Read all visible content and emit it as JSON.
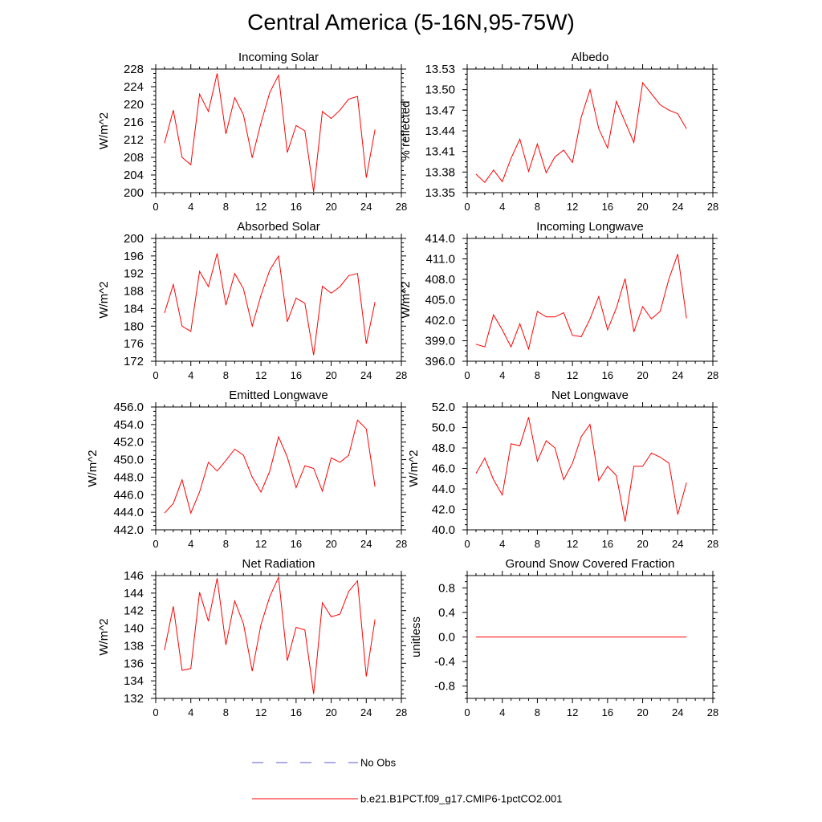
{
  "title": "Central America (5-16N,95-75W)",
  "colors": {
    "model": "#ff0000",
    "obs": "#5a5acd",
    "axis": "#000000"
  },
  "legend": {
    "obs_label": "No Obs",
    "model_label": "b.e21.B1PCT.f09_g17.CMIP6-1pctCO2.001"
  },
  "chart_data": [
    {
      "type": "line",
      "title": "Incoming Solar",
      "ylabel": "W/m^2",
      "xlim": [
        0,
        28
      ],
      "ylim": [
        200,
        228
      ],
      "xticks": [
        "0",
        "4",
        "8",
        "12",
        "16",
        "20",
        "24",
        "28"
      ],
      "yticks": [
        "200",
        "204",
        "208",
        "212",
        "216",
        "220",
        "224",
        "228"
      ],
      "series": [
        {
          "x": [
            1,
            2,
            3,
            4,
            5,
            6,
            7,
            8,
            9,
            10,
            11,
            12,
            13,
            14,
            15,
            16,
            17,
            18,
            19,
            20,
            21,
            22,
            23,
            24,
            25
          ],
          "values": [
            211.2,
            218.7,
            208.0,
            206.3,
            222.3,
            218.4,
            227.0,
            213.3,
            221.5,
            217.6,
            207.9,
            215.8,
            222.7,
            226.6,
            209.1,
            215.2,
            214.0,
            200.2,
            218.4,
            216.8,
            218.7,
            221.2,
            221.8,
            203.4,
            214.3
          ]
        }
      ]
    },
    {
      "type": "line",
      "title": "Albedo",
      "ylabel": "% reflected",
      "xlim": [
        0,
        28
      ],
      "ylim": [
        13.35,
        13.53
      ],
      "xticks": [
        "0",
        "4",
        "8",
        "12",
        "16",
        "20",
        "24",
        "28"
      ],
      "yticks": [
        "13.35",
        "13.38",
        "13.41",
        "13.44",
        "13.47",
        "13.50",
        "13.53"
      ],
      "series": [
        {
          "x": [
            1,
            2,
            3,
            4,
            5,
            6,
            7,
            8,
            9,
            10,
            11,
            12,
            13,
            14,
            15,
            16,
            17,
            18,
            19,
            20,
            21,
            22,
            23,
            24,
            25
          ],
          "values": [
            13.377,
            13.365,
            13.383,
            13.366,
            13.4,
            13.428,
            13.381,
            13.421,
            13.379,
            13.402,
            13.412,
            13.394,
            13.46,
            13.5,
            13.443,
            13.415,
            13.483,
            13.453,
            13.423,
            13.51,
            13.494,
            13.478,
            13.47,
            13.465,
            13.443
          ]
        }
      ]
    },
    {
      "type": "line",
      "title": "Absorbed Solar",
      "ylabel": "W/m^2",
      "xlim": [
        0,
        28
      ],
      "ylim": [
        172,
        200
      ],
      "xticks": [
        "0",
        "4",
        "8",
        "12",
        "16",
        "20",
        "24",
        "28"
      ],
      "yticks": [
        "172",
        "176",
        "180",
        "184",
        "188",
        "192",
        "196",
        "200"
      ],
      "series": [
        {
          "x": [
            1,
            2,
            3,
            4,
            5,
            6,
            7,
            8,
            9,
            10,
            11,
            12,
            13,
            14,
            15,
            16,
            17,
            18,
            19,
            20,
            21,
            22,
            23,
            24,
            25
          ],
          "values": [
            183.0,
            189.5,
            180.0,
            178.8,
            192.5,
            189.0,
            196.6,
            184.8,
            192.0,
            188.5,
            180.0,
            187.0,
            192.8,
            196.0,
            181.0,
            186.4,
            185.2,
            173.4,
            189.1,
            187.5,
            189.0,
            191.5,
            192.0,
            176.0,
            185.5
          ]
        }
      ]
    },
    {
      "type": "line",
      "title": "Incoming Longwave",
      "ylabel": "W/m^2",
      "xlim": [
        0,
        28
      ],
      "ylim": [
        396.0,
        414.0
      ],
      "xticks": [
        "0",
        "4",
        "8",
        "12",
        "16",
        "20",
        "24",
        "28"
      ],
      "yticks": [
        "396.0",
        "399.0",
        "402.0",
        "405.0",
        "408.0",
        "411.0",
        "414.0"
      ],
      "series": [
        {
          "x": [
            1,
            2,
            3,
            4,
            5,
            6,
            7,
            8,
            9,
            10,
            11,
            12,
            13,
            14,
            15,
            16,
            17,
            18,
            19,
            20,
            21,
            22,
            23,
            24,
            25
          ],
          "values": [
            398.5,
            398.1,
            402.8,
            400.6,
            398.1,
            401.5,
            397.8,
            403.3,
            402.5,
            402.5,
            403.1,
            399.8,
            399.6,
            402.2,
            405.5,
            400.6,
            403.8,
            408.1,
            400.3,
            404.0,
            402.2,
            403.3,
            408.1,
            411.7,
            402.3
          ]
        }
      ]
    },
    {
      "type": "line",
      "title": "Emitted Longwave",
      "ylabel": "W/m^2",
      "xlim": [
        0,
        28
      ],
      "ylim": [
        442.0,
        456.0
      ],
      "xticks": [
        "0",
        "4",
        "8",
        "12",
        "16",
        "20",
        "24",
        "28"
      ],
      "yticks": [
        "442.0",
        "444.0",
        "446.0",
        "448.0",
        "450.0",
        "452.0",
        "454.0",
        "456.0"
      ],
      "series": [
        {
          "x": [
            1,
            2,
            3,
            4,
            5,
            6,
            7,
            8,
            9,
            10,
            11,
            12,
            13,
            14,
            15,
            16,
            17,
            18,
            19,
            20,
            21,
            22,
            23,
            24,
            25
          ],
          "values": [
            443.9,
            445.0,
            447.7,
            443.9,
            446.3,
            449.7,
            448.7,
            449.9,
            451.2,
            450.5,
            448.0,
            446.3,
            448.7,
            452.6,
            450.3,
            446.8,
            449.3,
            449.0,
            446.4,
            450.2,
            449.7,
            450.5,
            454.5,
            453.5,
            446.9
          ]
        }
      ]
    },
    {
      "type": "line",
      "title": "Net Longwave",
      "ylabel": "W/m^2",
      "xlim": [
        0,
        28
      ],
      "ylim": [
        40.0,
        52.0
      ],
      "xticks": [
        "0",
        "4",
        "8",
        "12",
        "16",
        "20",
        "24",
        "28"
      ],
      "yticks": [
        "40.0",
        "42.0",
        "44.0",
        "46.0",
        "48.0",
        "50.0",
        "52.0"
      ],
      "series": [
        {
          "x": [
            1,
            2,
            3,
            4,
            5,
            6,
            7,
            8,
            9,
            10,
            11,
            12,
            13,
            14,
            15,
            16,
            17,
            18,
            19,
            20,
            21,
            22,
            23,
            24,
            25
          ],
          "values": [
            45.5,
            47.0,
            44.9,
            43.4,
            48.4,
            48.2,
            51.0,
            46.7,
            48.7,
            48.0,
            44.9,
            46.5,
            49.1,
            50.3,
            44.8,
            46.2,
            45.3,
            40.8,
            46.2,
            46.2,
            47.5,
            47.1,
            46.5,
            41.5,
            44.6
          ]
        }
      ]
    },
    {
      "type": "line",
      "title": "Net Radiation",
      "ylabel": "W/m^2",
      "xlim": [
        0,
        28
      ],
      "ylim": [
        132,
        146
      ],
      "xticks": [
        "0",
        "4",
        "8",
        "12",
        "16",
        "20",
        "24",
        "28"
      ],
      "yticks": [
        "132",
        "134",
        "136",
        "138",
        "140",
        "142",
        "144",
        "146"
      ],
      "series": [
        {
          "x": [
            1,
            2,
            3,
            4,
            5,
            6,
            7,
            8,
            9,
            10,
            11,
            12,
            13,
            14,
            15,
            16,
            17,
            18,
            19,
            20,
            21,
            22,
            23,
            24,
            25
          ],
          "values": [
            137.5,
            142.5,
            135.2,
            135.4,
            144.1,
            140.8,
            145.7,
            138.1,
            143.1,
            140.5,
            135.1,
            140.4,
            143.6,
            145.8,
            136.3,
            140.1,
            139.8,
            132.5,
            142.9,
            141.3,
            141.6,
            144.2,
            145.4,
            134.5,
            141.0
          ]
        }
      ]
    },
    {
      "type": "line",
      "title": "Ground Snow Covered Fraction",
      "ylabel": "unitless",
      "xlim": [
        0,
        28
      ],
      "ylim": [
        -1.0,
        1.0
      ],
      "xticks": [
        "0",
        "4",
        "8",
        "12",
        "16",
        "20",
        "24",
        "28"
      ],
      "yticks": [
        "-0.8",
        "-0.4",
        "0.0",
        "0.4",
        "0.8"
      ],
      "ytick_values": [
        -0.8,
        -0.4,
        0.0,
        0.4,
        0.8
      ],
      "series": [
        {
          "x": [
            1,
            25
          ],
          "values": [
            0.0,
            0.0
          ]
        }
      ]
    }
  ]
}
